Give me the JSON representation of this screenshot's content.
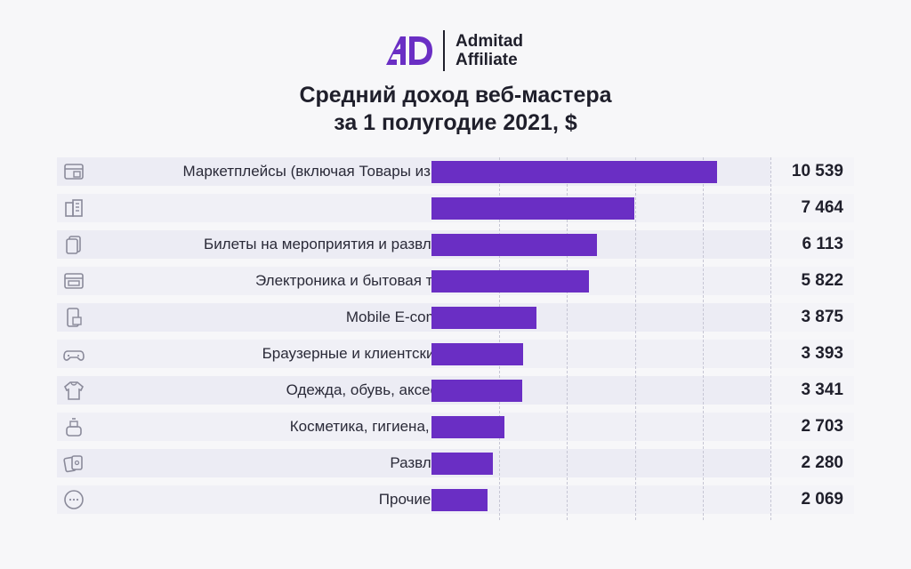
{
  "logo": {
    "brand_line1": "Admitad",
    "brand_line2": "Affiliate",
    "accent_color": "#6a2ec4"
  },
  "title": {
    "line1": "Средний доход веб-мастера",
    "line2": "за 1 полугодие 2021, $"
  },
  "chart_data": {
    "type": "bar",
    "orientation": "horizontal",
    "title": "Средний доход веб-мастера за 1 полугодие 2021, $",
    "categories": [
      "Маркетплейсы (включая Товары из Китая)",
      "Отели",
      "Билеты на мероприятия и развлечения",
      "Электроника и бытовая техника",
      "Mobile E-commerce",
      "Браузерные и клиентские игры",
      "Одежда, обувь, аксессуары",
      "Косметика, гигиена, аптеки",
      "Развлечения",
      "Прочие услуги"
    ],
    "values": [
      10539,
      7464,
      6113,
      5822,
      3875,
      3393,
      3341,
      2703,
      2280,
      2069
    ],
    "value_labels": [
      "10 539",
      "7 464",
      "6 113",
      "5 822",
      "3 875",
      "3 393",
      "3 341",
      "2 703",
      "2 280",
      "2 069"
    ],
    "icons": [
      "storefront-icon",
      "buildings-icon",
      "tickets-icon",
      "monitor-icon",
      "mobile-shop-icon",
      "gamepad-icon",
      "hoodie-icon",
      "cosmetics-icon",
      "cards-icon",
      "more-icon"
    ],
    "xlim": [
      0,
      12500
    ],
    "grid": true,
    "bar_color": "#6a2ec4"
  }
}
